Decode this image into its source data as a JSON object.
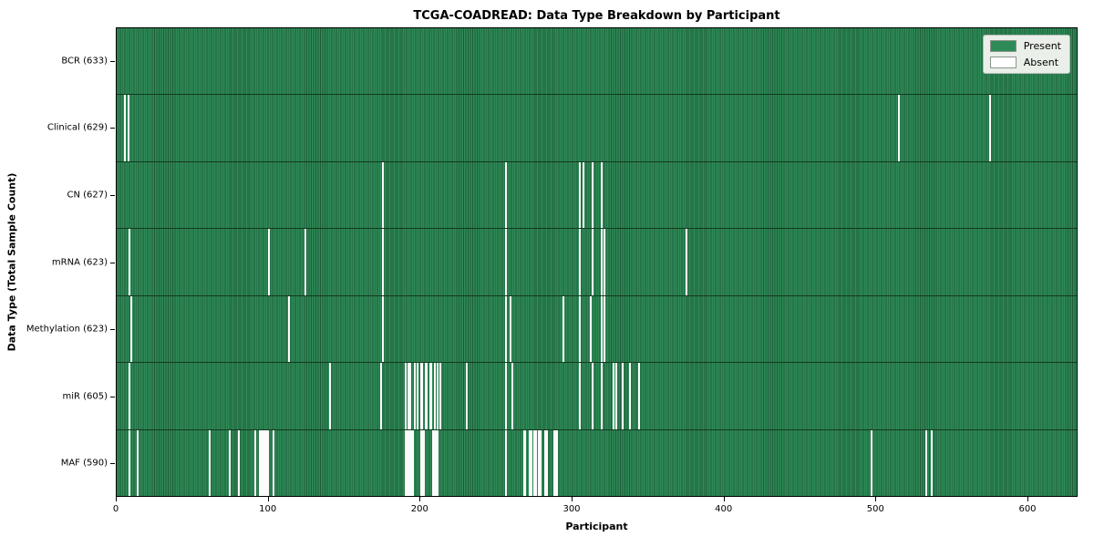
{
  "chart_data": {
    "type": "heatmap",
    "title": "TCGA-COADREAD: Data Type Breakdown by Participant",
    "xlabel": "Participant",
    "ylabel": "Data Type (Total Sample Count)",
    "x_range": [
      0,
      633
    ],
    "x_ticks": [
      0,
      100,
      200,
      300,
      400,
      500,
      600
    ],
    "total_participants": 633,
    "legend": [
      {
        "label": "Present",
        "color": "#2e8b57"
      },
      {
        "label": "Absent",
        "color": "#ffffff"
      }
    ],
    "colors": {
      "present": "#2e8b57",
      "present_edge": "#1e5c39",
      "absent": "#fbfbfb",
      "legend_bg": "#eaefe9"
    },
    "rows": [
      {
        "label": "BCR (633)",
        "data_type": "BCR",
        "total_samples": 633,
        "absent_participants": []
      },
      {
        "label": "Clinical (629)",
        "data_type": "Clinical",
        "total_samples": 629,
        "absent_participants": [
          5,
          7,
          515,
          575
        ]
      },
      {
        "label": "CN (627)",
        "data_type": "CN",
        "total_samples": 627,
        "absent_participants": [
          175,
          256,
          305,
          307,
          313,
          319
        ]
      },
      {
        "label": "mRNA (623)",
        "data_type": "mRNA",
        "total_samples": 623,
        "absent_participants": [
          8,
          100,
          124,
          175,
          256,
          305,
          313,
          319,
          321,
          375
        ]
      },
      {
        "label": "Methylation (623)",
        "data_type": "Methylation",
        "total_samples": 623,
        "absent_participants": [
          9,
          113,
          175,
          256,
          259,
          294,
          305,
          312,
          319,
          321
        ]
      },
      {
        "label": "miR (605)",
        "data_type": "miR",
        "total_samples": 605,
        "absent_participants": [
          8,
          140,
          174,
          190,
          192,
          193,
          196,
          198,
          200,
          201,
          203,
          204,
          206,
          207,
          209,
          211,
          213,
          230,
          256,
          260,
          305,
          313,
          319,
          327,
          329,
          333,
          338,
          344
        ]
      },
      {
        "label": "MAF (590)",
        "data_type": "MAF",
        "total_samples": 590,
        "absent_participants": [
          8,
          13,
          61,
          74,
          80,
          91,
          94,
          95,
          96,
          97,
          98,
          99,
          103,
          190,
          191,
          192,
          193,
          194,
          195,
          200,
          201,
          202,
          208,
          209,
          210,
          211,
          256,
          268,
          269,
          272,
          273,
          275,
          276,
          278,
          279,
          282,
          283,
          288,
          289,
          290,
          497,
          533,
          537
        ]
      }
    ]
  }
}
